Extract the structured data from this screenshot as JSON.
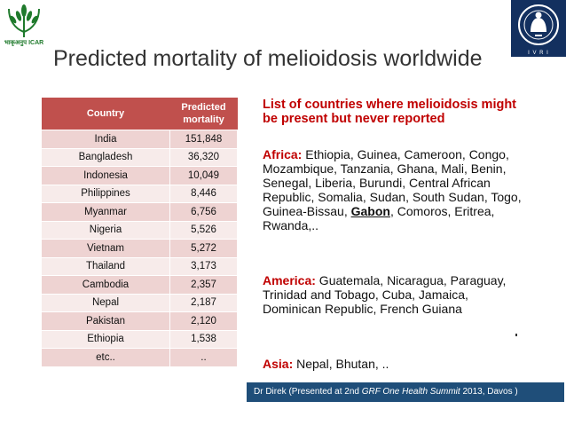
{
  "logos": {
    "left_text": "भाकृअनुप ICAR",
    "right_text": "I V R I"
  },
  "title": "Predicted mortality of melioidosis worldwide",
  "table": {
    "header": [
      "Country",
      "Predicted mortality"
    ],
    "rows": [
      {
        "country": "India",
        "mortality": "151,848"
      },
      {
        "country": "Bangladesh",
        "mortality": "36,320"
      },
      {
        "country": "Indonesia",
        "mortality": "10,049"
      },
      {
        "country": "Philippines",
        "mortality": "8,446"
      },
      {
        "country": "Myanmar",
        "mortality": "6,756"
      },
      {
        "country": "Nigeria",
        "mortality": "5,526"
      },
      {
        "country": "Vietnam",
        "mortality": "5,272"
      },
      {
        "country": "Thailand",
        "mortality": "3,173"
      },
      {
        "country": "Cambodia",
        "mortality": "2,357"
      },
      {
        "country": "Nepal",
        "mortality": "2,187"
      },
      {
        "country": "Pakistan",
        "mortality": "2,120"
      },
      {
        "country": "Ethiopia",
        "mortality": "1,538"
      },
      {
        "country": "etc..",
        "mortality": ".."
      }
    ]
  },
  "list": {
    "heading": "List of countries where melioidosis might be present but never reported",
    "africa": {
      "label": "Africa:",
      "text_before": " Ethiopia, Guinea, Cameroon, Congo, Mozambique, Tanzania, Ghana, Mali, Benin, Senegal, Liberia, Burundi, Central African Republic, Somalia, Sudan, South Sudan, Togo, Guinea-Bissau, ",
      "highlight": "Gabon",
      "text_after": ", Comoros, Eritrea, Rwanda,.."
    },
    "america": {
      "label": "America:",
      "text": " Guatemala, Nicaragua, Paraguay, Trinidad and Tobago, Cuba, Jamaica, Dominican Republic, French Guiana"
    },
    "asia": {
      "label": "Asia:",
      "text": " Nepal, Bhutan, .."
    }
  },
  "footer": {
    "prefix": "Dr Direk (Presented at 2nd ",
    "italic": "GRF One Health Summit",
    "suffix": " 2013, Davos )"
  },
  "colors": {
    "table_header": "#c0504d",
    "row_odd": "#eed3d2",
    "row_even": "#f7ebea",
    "accent_red": "#c00000",
    "footer_bg": "#1f4e79",
    "icar_green": "#1f7a2c",
    "ivri_blue": "#13305f"
  }
}
